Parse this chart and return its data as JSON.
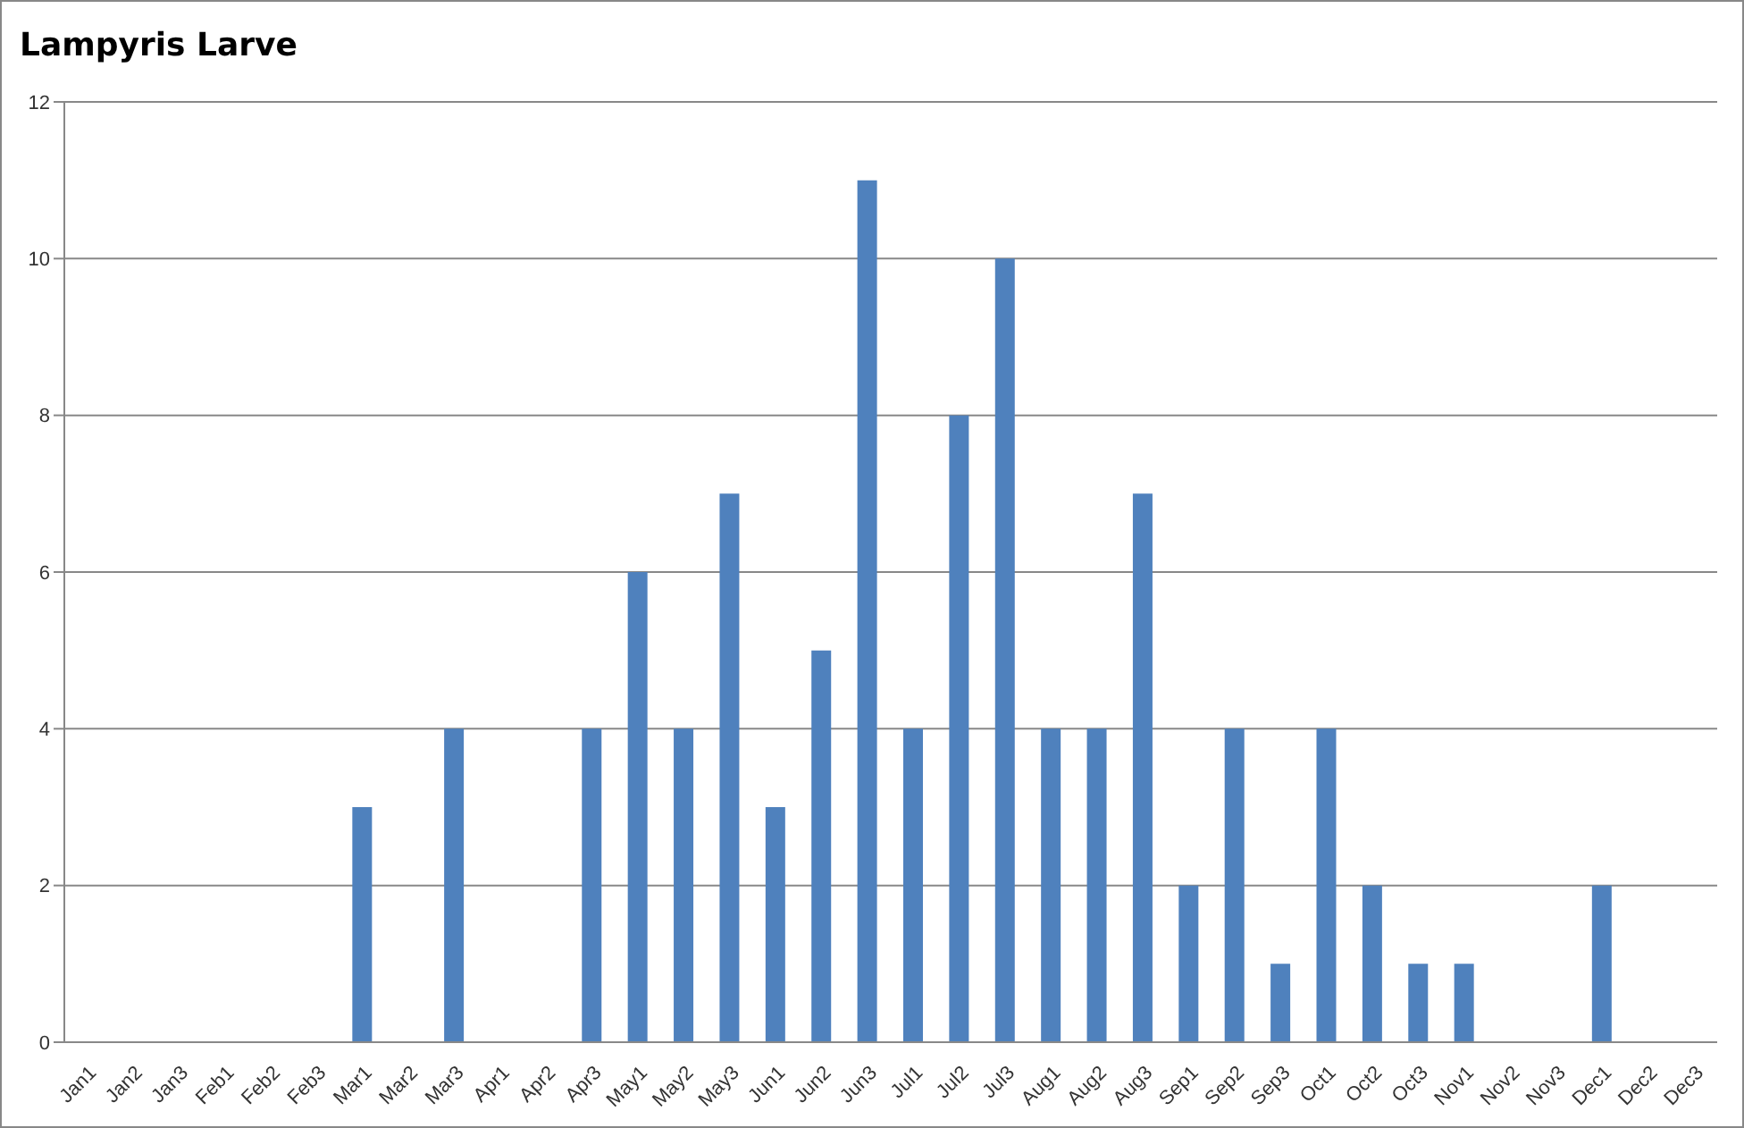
{
  "chart_data": {
    "type": "bar",
    "title": "Lampyris Larve",
    "categories": [
      "Jan1",
      "Jan2",
      "Jan3",
      "Feb1",
      "Feb2",
      "Feb3",
      "Mar1",
      "Mar2",
      "Mar3",
      "Apr1",
      "Apr2",
      "Apr3",
      "May1",
      "May2",
      "May3",
      "Jun1",
      "Jun2",
      "Jun3",
      "Jul1",
      "Jul2",
      "Jul3",
      "Aug1",
      "Aug2",
      "Aug3",
      "Sep1",
      "Sep2",
      "Sep3",
      "Oct1",
      "Oct2",
      "Oct3",
      "Nov1",
      "Nov2",
      "Nov3",
      "Dec1",
      "Dec2",
      "Dec3"
    ],
    "values": [
      0,
      0,
      0,
      0,
      0,
      0,
      3,
      0,
      4,
      0,
      0,
      4,
      6,
      4,
      7,
      3,
      5,
      11,
      4,
      8,
      10,
      4,
      4,
      7,
      2,
      4,
      1,
      4,
      2,
      1,
      1,
      0,
      0,
      2,
      0,
      0
    ],
    "color": "#4f81bd",
    "ylim": [
      0,
      12
    ],
    "yticks": [
      0,
      2,
      4,
      6,
      8,
      10,
      12
    ],
    "grid": "y",
    "legend": false
  }
}
